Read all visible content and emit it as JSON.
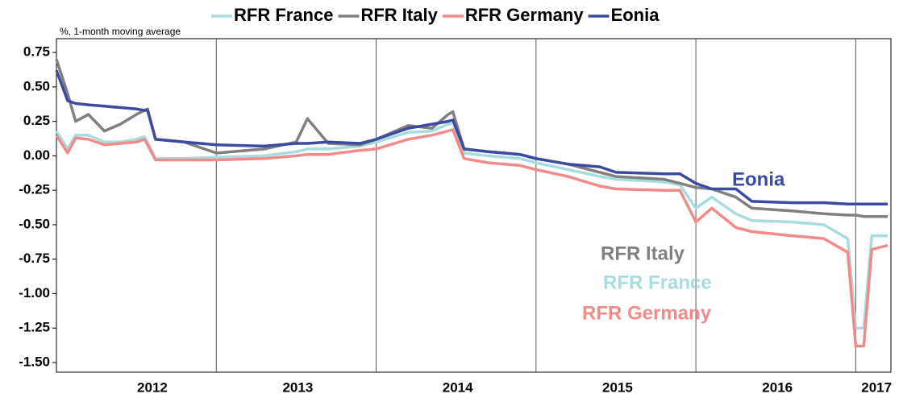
{
  "chart_data": {
    "type": "line",
    "subtitle": "%, 1-month moving average",
    "x": [
      2012.0,
      2012.07,
      2012.12,
      2012.2,
      2012.3,
      2012.4,
      2012.5,
      2012.55,
      2012.57,
      2012.62,
      2012.8,
      2013.0,
      2013.3,
      2013.5,
      2013.57,
      2013.7,
      2013.9,
      2014.0,
      2014.2,
      2014.35,
      2014.45,
      2014.48,
      2014.55,
      2014.7,
      2014.9,
      2015.0,
      2015.2,
      2015.4,
      2015.5,
      2015.8,
      2015.9,
      2016.0,
      2016.1,
      2016.25,
      2016.35,
      2016.6,
      2016.8,
      2016.95,
      2017.0,
      2017.05,
      2017.1,
      2017.2
    ],
    "series": [
      {
        "name": "RFR France",
        "color": "#a8dde0",
        "values": [
          0.18,
          0.05,
          0.15,
          0.15,
          0.1,
          0.1,
          0.12,
          0.14,
          0.1,
          -0.02,
          -0.02,
          -0.01,
          0.0,
          0.03,
          0.05,
          0.05,
          0.07,
          0.1,
          0.17,
          0.18,
          0.23,
          0.24,
          0.02,
          0.0,
          -0.02,
          -0.05,
          -0.1,
          -0.15,
          -0.17,
          -0.19,
          -0.21,
          -0.38,
          -0.3,
          -0.42,
          -0.47,
          -0.48,
          -0.5,
          -0.6,
          -1.25,
          -1.25,
          -0.58,
          -0.58
        ]
      },
      {
        "name": "RFR Italy",
        "color": "#808080",
        "values": [
          0.7,
          0.45,
          0.25,
          0.3,
          0.18,
          0.23,
          0.3,
          0.33,
          0.34,
          0.12,
          0.1,
          0.02,
          0.05,
          0.1,
          0.27,
          0.09,
          0.08,
          0.12,
          0.22,
          0.2,
          0.3,
          0.32,
          0.05,
          0.03,
          0.01,
          -0.02,
          -0.06,
          -0.12,
          -0.15,
          -0.17,
          -0.2,
          -0.23,
          -0.24,
          -0.3,
          -0.38,
          -0.4,
          -0.42,
          -0.43,
          -0.43,
          -0.44,
          -0.44,
          -0.44
        ]
      },
      {
        "name": "RFR Germany",
        "color": "#f08b8b",
        "values": [
          0.15,
          0.02,
          0.13,
          0.12,
          0.08,
          0.09,
          0.1,
          0.12,
          0.08,
          -0.03,
          -0.03,
          -0.03,
          -0.02,
          0.0,
          0.01,
          0.01,
          0.04,
          0.05,
          0.12,
          0.15,
          0.18,
          0.19,
          -0.02,
          -0.05,
          -0.07,
          -0.1,
          -0.15,
          -0.22,
          -0.24,
          -0.25,
          -0.25,
          -0.48,
          -0.38,
          -0.52,
          -0.55,
          -0.58,
          -0.6,
          -0.7,
          -1.38,
          -1.38,
          -0.68,
          -0.65
        ]
      },
      {
        "name": "Eonia",
        "color": "#3c4aa0",
        "values": [
          0.62,
          0.4,
          0.38,
          0.37,
          0.36,
          0.35,
          0.34,
          0.33,
          0.33,
          0.12,
          0.1,
          0.08,
          0.07,
          0.09,
          0.09,
          0.1,
          0.09,
          0.12,
          0.2,
          0.23,
          0.25,
          0.26,
          0.05,
          0.03,
          0.01,
          -0.02,
          -0.06,
          -0.08,
          -0.12,
          -0.13,
          -0.13,
          -0.2,
          -0.24,
          -0.24,
          -0.33,
          -0.34,
          -0.34,
          -0.35,
          -0.35,
          -0.35,
          -0.35,
          -0.35
        ]
      }
    ],
    "annotations": [
      "Eonia",
      "RFR Italy",
      "RFR France",
      "RFR Germany"
    ],
    "xlim": [
      2012.0,
      2017.22
    ],
    "xticks": [
      {
        "value": 2012.6,
        "label": "2012"
      },
      {
        "value": 2013.51,
        "label": "2013"
      },
      {
        "value": 2014.51,
        "label": "2014"
      },
      {
        "value": 2015.51,
        "label": "2015"
      },
      {
        "value": 2016.51,
        "label": "2016"
      },
      {
        "value": 2017.13,
        "label": "2017"
      }
    ],
    "xgrid": [
      2013,
      2014,
      2015,
      2016,
      2017
    ],
    "ylim": [
      -1.57,
      0.85
    ],
    "yticks": [
      {
        "value": 0.75,
        "label": "0.75"
      },
      {
        "value": 0.5,
        "label": "0.50"
      },
      {
        "value": 0.25,
        "label": "0.25"
      },
      {
        "value": 0,
        "label": "0.00"
      },
      {
        "value": -0.25,
        "label": "-0.25"
      },
      {
        "value": -0.5,
        "label": "-0.50"
      },
      {
        "value": -0.75,
        "label": "-0.75"
      },
      {
        "value": -1,
        "label": "-1.00"
      },
      {
        "value": -1.25,
        "label": "-1.25"
      },
      {
        "value": -1.5,
        "label": "-1.50"
      }
    ]
  }
}
